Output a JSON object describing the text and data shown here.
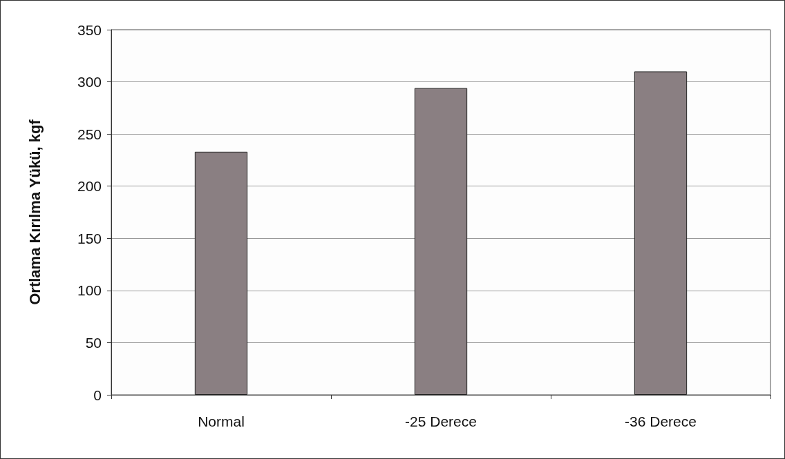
{
  "chart_data": {
    "type": "bar",
    "ylabel": "Ortlama Kırılma Yükü, kgf",
    "categories": [
      "Normal",
      "-25 Derece",
      "-36 Derece"
    ],
    "values": [
      233,
      294,
      310
    ],
    "color": "#8a7f82",
    "ylim": [
      0,
      350
    ],
    "yticks": [
      0,
      50,
      100,
      150,
      200,
      250,
      300,
      350
    ],
    "grid": "y"
  }
}
